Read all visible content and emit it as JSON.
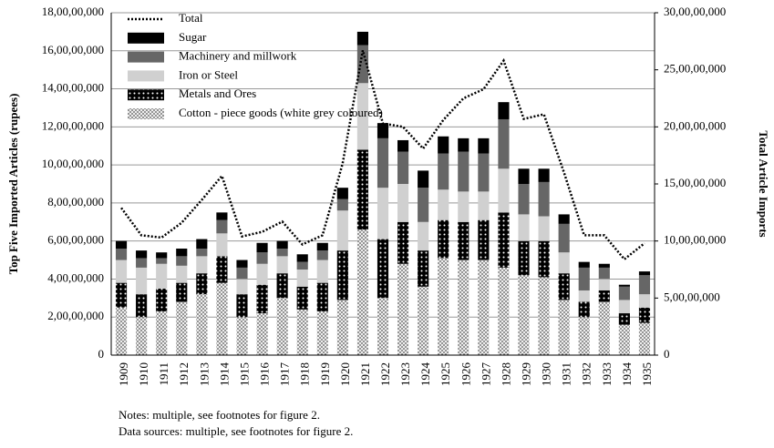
{
  "chart_data": {
    "type": "stacked-bar-line",
    "y_label": "Top Five Imported Articles (rupees)",
    "y2_label": "Total Article Imports",
    "notes": [
      "Notes: multiple, see footnotes for figure 2.",
      "Data sources: multiple, see footnotes for figure 2."
    ],
    "categories": [
      "1909",
      "1910",
      "1911",
      "1912",
      "1913",
      "1914",
      "1915",
      "1916",
      "1917",
      "1918",
      "1919",
      "1920",
      "1921",
      "1922",
      "1923",
      "1924",
      "1925",
      "1926",
      "1927",
      "1928",
      "1929",
      "1930",
      "1931",
      "1932",
      "1933",
      "1934",
      "1935"
    ],
    "ylim": [
      0,
      180000000
    ],
    "yticks": [
      0,
      {
        "value": 20000000,
        "label": "2,00,00,000"
      },
      {
        "value": 40000000,
        "label": "4,00,00,000"
      },
      {
        "value": 60000000,
        "label": "6,00,00,000"
      },
      {
        "value": 80000000,
        "label": "8,00,00,000"
      },
      {
        "value": 100000000,
        "label": "10,00,00,000"
      },
      {
        "value": 120000000,
        "label": "12,00,00,000"
      },
      {
        "value": 140000000,
        "label": "14,00,00,000"
      },
      {
        "value": 160000000,
        "label": "16,00,00,000"
      },
      {
        "value": 180000000,
        "label": "18,00,00,000"
      }
    ],
    "y2lim": [
      0,
      300000000
    ],
    "y2ticks": [
      0,
      {
        "value": 50000000,
        "label": "5,00,00,000"
      },
      {
        "value": 100000000,
        "label": "10,00,00,000"
      },
      {
        "value": 150000000,
        "label": "15,00,00,000"
      },
      {
        "value": 200000000,
        "label": "20,00,00,000"
      },
      {
        "value": 250000000,
        "label": "25,00,00,000"
      },
      {
        "value": 300000000,
        "label": "30,00,00,000"
      }
    ],
    "grid": true,
    "legend": "top-left",
    "series": [
      {
        "name": "Cotton - piece goods (white grey coloured)",
        "color": "#bdbdbd",
        "pattern": "dots",
        "values": [
          25000000,
          20000000,
          23000000,
          28000000,
          32000000,
          38000000,
          20000000,
          22000000,
          30000000,
          24000000,
          23000000,
          29000000,
          66000000,
          30000000,
          48000000,
          36000000,
          51000000,
          50000000,
          50000000,
          46000000,
          42000000,
          41000000,
          29000000,
          20000000,
          28000000,
          16000000,
          17000000
        ]
      },
      {
        "name": "Metals and Ores",
        "color": "#000000",
        "pattern": "dots",
        "values": [
          13000000,
          12000000,
          12000000,
          10000000,
          11000000,
          14000000,
          12000000,
          15000000,
          13000000,
          12000000,
          15000000,
          26000000,
          42000000,
          31000000,
          22000000,
          19000000,
          20000000,
          20000000,
          21000000,
          29000000,
          18000000,
          19000000,
          14000000,
          8000000,
          6000000,
          6000000,
          8000000
        ]
      },
      {
        "name": "Iron or Steel",
        "color": "#d0d0d0",
        "values": [
          12000000,
          14000000,
          13000000,
          9000000,
          9000000,
          12000000,
          8000000,
          11000000,
          9000000,
          9000000,
          12000000,
          21000000,
          35000000,
          27000000,
          20000000,
          15000000,
          16000000,
          16000000,
          15000000,
          23000000,
          14000000,
          13000000,
          11000000,
          6000000,
          6000000,
          7000000,
          7000000
        ]
      },
      {
        "name": "Machinery and millwork",
        "color": "#666666",
        "values": [
          6000000,
          5000000,
          3000000,
          5000000,
          4000000,
          7000000,
          6000000,
          6000000,
          4000000,
          4000000,
          5000000,
          6000000,
          20000000,
          26000000,
          17000000,
          18000000,
          19000000,
          21000000,
          20000000,
          26000000,
          16000000,
          18000000,
          15000000,
          12000000,
          6000000,
          7000000,
          10000000
        ]
      },
      {
        "name": "Sugar",
        "color": "#000000",
        "values": [
          4000000,
          4000000,
          3000000,
          4000000,
          5000000,
          4000000,
          4000000,
          5000000,
          4000000,
          4000000,
          4000000,
          6000000,
          7000000,
          8000000,
          6000000,
          9000000,
          9000000,
          7000000,
          8000000,
          9000000,
          8000000,
          7000000,
          5000000,
          3000000,
          2000000,
          1000000,
          2000000
        ]
      },
      {
        "name": "Total",
        "color": "#000000",
        "type": "line",
        "axis": "y2",
        "dash": "dotted",
        "values": [
          129000000,
          105000000,
          103000000,
          116000000,
          136000000,
          157000000,
          104000000,
          108000000,
          117000000,
          97000000,
          105000000,
          168000000,
          267000000,
          203000000,
          200000000,
          181000000,
          206000000,
          225000000,
          233000000,
          258000000,
          207000000,
          211000000,
          160000000,
          105000000,
          105000000,
          84000000,
          98000000
        ]
      }
    ]
  }
}
